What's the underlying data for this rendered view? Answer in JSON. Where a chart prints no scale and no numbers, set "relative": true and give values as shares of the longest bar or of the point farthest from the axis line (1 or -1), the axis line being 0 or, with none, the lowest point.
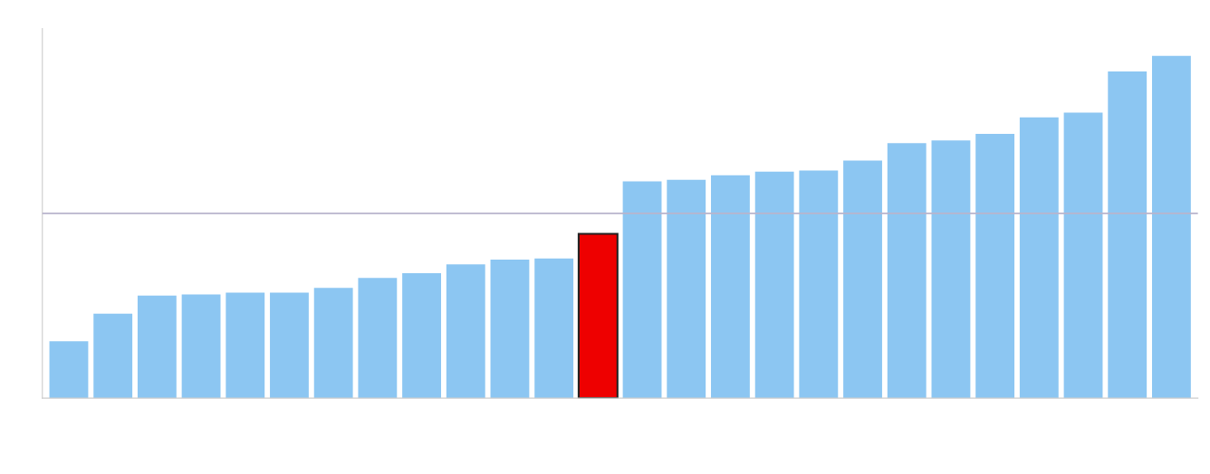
{
  "chart_data": {
    "type": "bar",
    "relative": true,
    "categories": [
      null,
      null,
      null,
      null,
      null,
      null,
      null,
      null,
      null,
      null,
      null,
      null,
      null,
      null,
      null,
      null,
      null,
      null,
      null,
      null,
      null,
      null,
      null,
      null,
      null,
      null
    ],
    "values": [
      0.166,
      0.247,
      0.3,
      0.303,
      0.308,
      0.308,
      0.322,
      0.351,
      0.365,
      0.391,
      0.405,
      0.408,
      0.48,
      0.633,
      0.638,
      0.651,
      0.662,
      0.665,
      0.694,
      0.745,
      0.753,
      0.772,
      0.82,
      0.834,
      0.954,
      1
    ],
    "colors": [
      "#8cc6f2",
      "#8cc6f2",
      "#8cc6f2",
      "#8cc6f2",
      "#8cc6f2",
      "#8cc6f2",
      "#8cc6f2",
      "#8cc6f2",
      "#8cc6f2",
      "#8cc6f2",
      "#8cc6f2",
      "#8cc6f2",
      "#ee0000",
      "#8cc6f2",
      "#8cc6f2",
      "#8cc6f2",
      "#8cc6f2",
      "#8cc6f2",
      "#8cc6f2",
      "#8cc6f2",
      "#8cc6f2",
      "#8cc6f2",
      "#8cc6f2",
      "#8cc6f2",
      "#8cc6f2",
      "#8cc6f2"
    ],
    "ref_lines": [
      {
        "axis": "y",
        "value": 0.54,
        "color": "#b8b4cc"
      }
    ],
    "grid": false,
    "legend": false
  }
}
